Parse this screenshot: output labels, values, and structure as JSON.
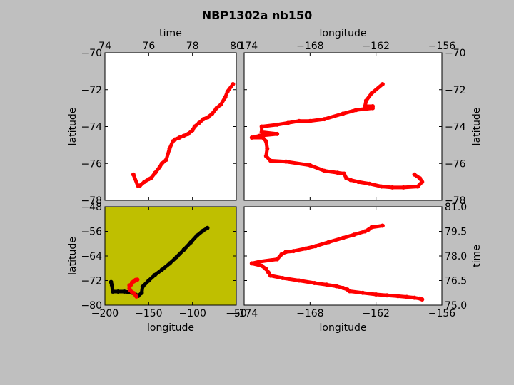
{
  "figure": {
    "title": "NBP1302a nb150",
    "background": "#bfbfbf",
    "track_color": "#ff0000",
    "overview_track_color": "#000000",
    "overview_background": "#bfbf00"
  },
  "chart_data": [
    {
      "id": "time-lat",
      "type": "scatter",
      "xlabel": "time",
      "ylabel": "latitude",
      "xaxis_position": "top",
      "yaxis_position": "left",
      "xlim": [
        74,
        80
      ],
      "ylim": [
        -78,
        -70
      ],
      "xticks": [
        74,
        76,
        78,
        80
      ],
      "yticks": [
        -78,
        -76,
        -74,
        -72,
        -70
      ],
      "series": [
        {
          "color": "#ff0000",
          "x": [
            75.3,
            75.5,
            75.6,
            75.8,
            76.0,
            76.1,
            76.3,
            76.5,
            76.6,
            76.8,
            76.95,
            77.1,
            77.2,
            77.4,
            77.6,
            77.8,
            78.0,
            78.1,
            78.3,
            78.5,
            78.7,
            78.9,
            79.1,
            79.3,
            79.5,
            79.6,
            79.85
          ],
          "y": [
            -76.6,
            -77.2,
            -77.2,
            -77.0,
            -76.85,
            -76.8,
            -76.5,
            -76.2,
            -76.0,
            -75.8,
            -75.2,
            -74.8,
            -74.7,
            -74.6,
            -74.5,
            -74.4,
            -74.2,
            -74.0,
            -73.8,
            -73.6,
            -73.5,
            -73.3,
            -73.0,
            -72.8,
            -72.4,
            -72.1,
            -71.7
          ]
        }
      ]
    },
    {
      "id": "lon-lat",
      "type": "scatter",
      "xlabel": "longitude",
      "ylabel": "latitude",
      "xaxis_position": "top",
      "yaxis_position": "right",
      "xlim": [
        -174,
        -156
      ],
      "ylim": [
        -78,
        -70
      ],
      "xticks": [
        -174,
        -168,
        -162,
        -156
      ],
      "yticks": [
        -78,
        -76,
        -74,
        -72,
        -70
      ],
      "series": [
        {
          "color": "#ff0000",
          "x": [
            -161.4,
            -162.4,
            -162.9,
            -163.0,
            -162.3,
            -162.3,
            -163.8,
            -165.0,
            -166.7,
            -168.0,
            -169.0,
            -170.0,
            -171.0,
            -172.4,
            -172.4,
            -171.0,
            -172.6,
            -173.3,
            -172.3,
            -172.0,
            -171.9,
            -172.0,
            -171.6,
            -170.2,
            -168.0,
            -166.7,
            -165.5,
            -164.9,
            -164.7,
            -164.3,
            -163.6,
            -162.6,
            -161.5,
            -160.5,
            -159.5,
            -158.2,
            -157.8,
            -158.0,
            -158.5
          ],
          "y": [
            -71.7,
            -72.2,
            -72.6,
            -72.9,
            -72.9,
            -73.0,
            -73.1,
            -73.3,
            -73.6,
            -73.7,
            -73.7,
            -73.8,
            -73.9,
            -74.0,
            -74.3,
            -74.4,
            -74.5,
            -74.6,
            -74.6,
            -74.8,
            -75.2,
            -75.6,
            -75.85,
            -75.9,
            -76.1,
            -76.4,
            -76.5,
            -76.55,
            -76.8,
            -76.9,
            -77.0,
            -77.1,
            -77.25,
            -77.3,
            -77.3,
            -77.25,
            -77.0,
            -76.8,
            -76.6
          ]
        }
      ]
    },
    {
      "id": "overview",
      "type": "scatter",
      "xlabel": "longitude",
      "ylabel": "latitude",
      "xaxis_position": "bottom",
      "yaxis_position": "left",
      "xlim": [
        -200,
        -50
      ],
      "ylim": [
        -80,
        -48
      ],
      "xticks": [
        -200,
        -150,
        -100,
        -50
      ],
      "yticks": [
        -80,
        -72,
        -64,
        -56,
        -48
      ],
      "background": "#bfbf00",
      "series": [
        {
          "color": "#000000",
          "x": [
            -193,
            -192,
            -191,
            -185,
            -178,
            -172,
            -166,
            -162,
            -158,
            -157,
            -150,
            -143,
            -135,
            -126,
            -118,
            -110,
            -102,
            -95,
            -88,
            -83
          ],
          "y": [
            -72.5,
            -73.5,
            -75.6,
            -75.6,
            -75.6,
            -75.8,
            -76.3,
            -77.0,
            -76.0,
            -74.0,
            -72.0,
            -70.2,
            -68.5,
            -66.4,
            -64.3,
            -62.0,
            -59.6,
            -57.4,
            -55.8,
            -54.9
          ]
        },
        {
          "color": "#ff0000",
          "x": [
            -163,
            -165,
            -167,
            -169,
            -170,
            -172,
            -172,
            -171,
            -169,
            -167,
            -166,
            -164
          ],
          "y": [
            -71.7,
            -71.8,
            -72.3,
            -72.6,
            -73.3,
            -73.6,
            -74.6,
            -75.2,
            -75.8,
            -76.1,
            -76.5,
            -77.2
          ]
        }
      ]
    },
    {
      "id": "lon-time",
      "type": "scatter",
      "xlabel": "longitude",
      "ylabel": "time",
      "xaxis_position": "bottom",
      "yaxis_position": "right",
      "xlim": [
        -174,
        -156
      ],
      "ylim": [
        75.0,
        81.0
      ],
      "xticks": [
        -174,
        -168,
        -162,
        -156
      ],
      "yticks": [
        75.0,
        76.5,
        78.0,
        79.5,
        81.0
      ],
      "ytick_labels": [
        "75.0",
        "76.5",
        "78.0",
        "79.5",
        "81.0"
      ],
      "series": [
        {
          "color": "#ff0000",
          "x": [
            -161.4,
            -162.4,
            -162.7,
            -163.0,
            -164.0,
            -165.0,
            -166.3,
            -167.5,
            -168.4,
            -169.5,
            -170.2,
            -170.6,
            -171.0,
            -172.6,
            -173.3,
            -172.4,
            -172.0,
            -171.8,
            -171.6,
            -170.5,
            -169.0,
            -167.6,
            -166.5,
            -165.6,
            -165.0,
            -164.6,
            -164.4,
            -163.2,
            -162.0,
            -161.0,
            -160.0,
            -159.2,
            -158.5,
            -158.0,
            -157.8
          ],
          "y": [
            79.85,
            79.75,
            79.6,
            79.5,
            79.3,
            79.1,
            78.85,
            78.6,
            78.45,
            78.3,
            78.25,
            78.1,
            77.8,
            77.65,
            77.55,
            77.4,
            77.2,
            77.0,
            76.8,
            76.65,
            76.5,
            76.35,
            76.25,
            76.15,
            76.05,
            75.95,
            75.85,
            75.75,
            75.65,
            75.6,
            75.55,
            75.5,
            75.45,
            75.4,
            75.35
          ]
        }
      ]
    }
  ]
}
